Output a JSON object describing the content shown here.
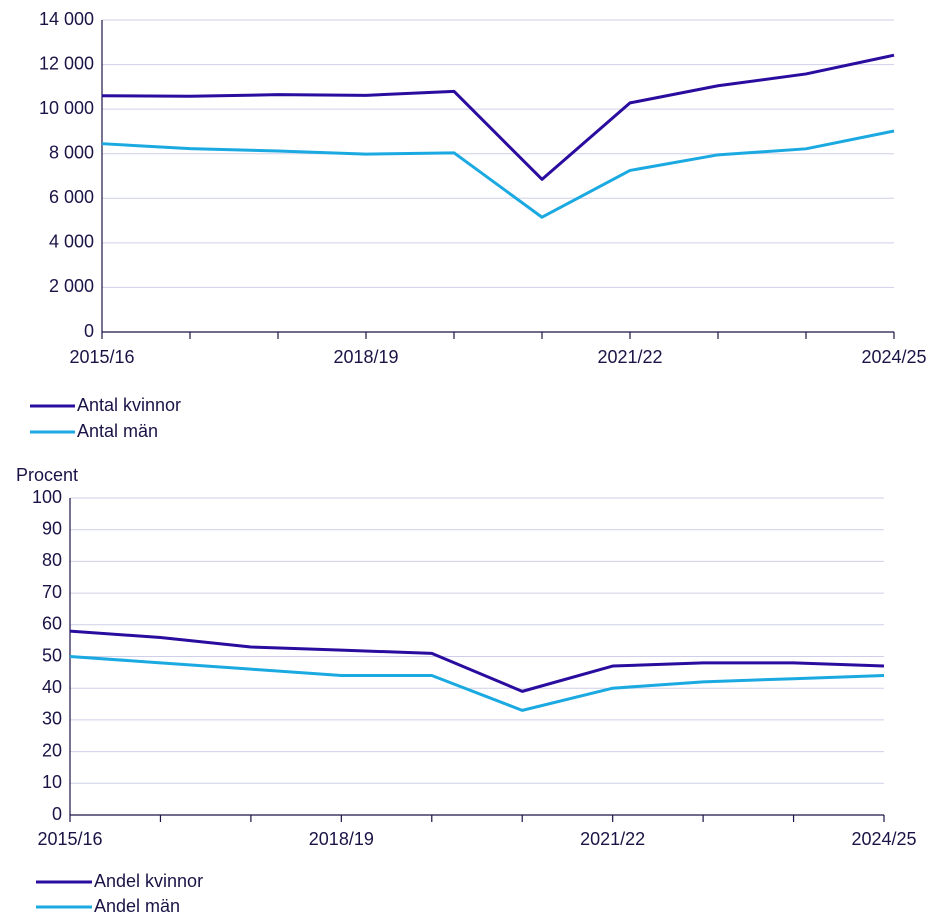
{
  "chart_data": [
    {
      "type": "line",
      "categories": [
        "2015/16",
        null,
        null,
        "2018/19",
        null,
        null,
        "2021/22",
        null,
        null,
        "2024/25"
      ],
      "series": [
        {
          "name": "Antal kvinnor",
          "color": "#2a0c9e",
          "values": [
            10600,
            10580,
            10650,
            10620,
            10800,
            6850,
            10280,
            11050,
            11580,
            12420
          ]
        },
        {
          "name": "Antal män",
          "color": "#1ba9e1",
          "values": [
            8450,
            8230,
            8120,
            7980,
            8040,
            5150,
            7250,
            7950,
            8220,
            9020
          ]
        }
      ],
      "ylim": [
        0,
        14000
      ],
      "yticks": [
        0,
        {
          "value": 2000,
          "label": "2 000"
        },
        {
          "value": 4000,
          "label": "4 000"
        },
        {
          "value": 6000,
          "label": "6 000"
        },
        {
          "value": 8000,
          "label": "8 000"
        },
        {
          "value": 10000,
          "label": "10 000"
        },
        {
          "value": 12000,
          "label": "12 000"
        },
        {
          "value": 14000,
          "label": "14 000"
        }
      ],
      "grid": true
    },
    {
      "type": "line",
      "y_label": "Procent",
      "categories": [
        "2015/16",
        null,
        null,
        "2018/19",
        null,
        null,
        "2021/22",
        null,
        null,
        "2024/25"
      ],
      "series": [
        {
          "name": "Andel kvinnor",
          "color": "#2a0c9e",
          "values": [
            58,
            56,
            53,
            52,
            51,
            39,
            47,
            48,
            48,
            47
          ]
        },
        {
          "name": "Andel män",
          "color": "#1ba9e1",
          "values": [
            50,
            48,
            46,
            44,
            44,
            33,
            40,
            42,
            43,
            44
          ]
        }
      ],
      "ylim": [
        0,
        100
      ],
      "yticks": [
        0,
        10,
        20,
        30,
        40,
        50,
        60,
        70,
        80,
        90,
        100
      ],
      "grid": true
    }
  ]
}
